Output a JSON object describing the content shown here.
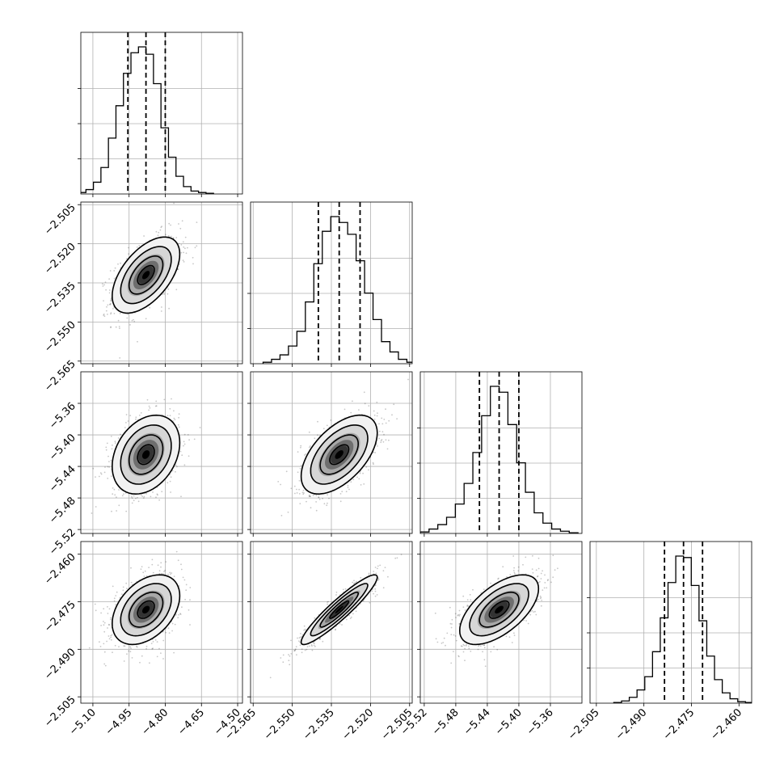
{
  "chart_data": {
    "type": "corner",
    "grid": true,
    "colors": {
      "ink": "#000000",
      "grid": "#b0b0b0",
      "points": "#000000"
    },
    "parameters": [
      {
        "index": 0,
        "range": [
          -5.15,
          -4.48
        ],
        "ticks": [
          -5.1,
          -4.95,
          -4.8,
          -4.65,
          -4.5
        ],
        "tick_labels": [
          "−5.10",
          "−4.95",
          "−4.80",
          "−4.65",
          "−4.50"
        ],
        "mean": -4.88,
        "sd": 0.07,
        "quantiles": [
          -4.955,
          -4.88,
          -4.8
        ]
      },
      {
        "index": 1,
        "range": [
          -2.566,
          -2.504
        ],
        "ticks": [
          -2.565,
          -2.55,
          -2.535,
          -2.52,
          -2.505
        ],
        "tick_labels": [
          "−2.565",
          "−2.550",
          "−2.535",
          "−2.520",
          "−2.505"
        ],
        "mean": -2.532,
        "sd": 0.0073,
        "quantiles": [
          -2.54,
          -2.532,
          -2.524
        ]
      },
      {
        "index": 2,
        "range": [
          -5.525,
          -5.32
        ],
        "ticks": [
          -5.52,
          -5.48,
          -5.44,
          -5.4,
          -5.36
        ],
        "tick_labels": [
          "−5.52",
          "−5.48",
          "−5.44",
          "−5.40",
          "−5.36"
        ],
        "mean": -5.425,
        "sd": 0.025,
        "quantiles": [
          -5.45,
          -5.425,
          -5.4
        ]
      },
      {
        "index": 3,
        "range": [
          -2.507,
          -2.456
        ],
        "ticks": [
          -2.505,
          -2.49,
          -2.475,
          -2.46
        ],
        "tick_labels": [
          "−2.505",
          "−2.490",
          "−2.475",
          "−2.460"
        ],
        "mean": -2.4775,
        "sd": 0.0055,
        "quantiles": [
          -2.4835,
          -2.4775,
          -2.4715
        ]
      }
    ],
    "correlations": {
      "1-0": 0.55,
      "2-0": 0.3,
      "2-1": 0.55,
      "3-0": 0.4,
      "3-1": 0.93,
      "3-2": 0.6
    },
    "histograms": [
      [
        1,
        3,
        8,
        18,
        38,
        60,
        82,
        96,
        100,
        95,
        75,
        45,
        25,
        12,
        5,
        2,
        1,
        0.5
      ],
      [
        1,
        3,
        6,
        12,
        22,
        42,
        68,
        90,
        100,
        96,
        88,
        70,
        48,
        30,
        15,
        8,
        3,
        1
      ],
      [
        1,
        3,
        6,
        11,
        20,
        34,
        55,
        80,
        100,
        96,
        74,
        48,
        28,
        14,
        7,
        3,
        1.5,
        0.5
      ],
      [
        0.5,
        1.5,
        4,
        9,
        18,
        35,
        58,
        82,
        100,
        99,
        80,
        56,
        32,
        16,
        7,
        3,
        1,
        0.5
      ]
    ]
  }
}
